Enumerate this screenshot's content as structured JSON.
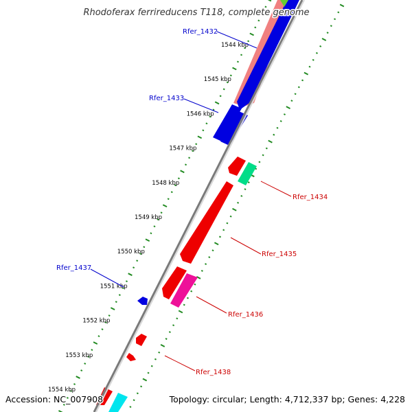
{
  "title": "Rhodoferax ferrireducens T118, complete genome",
  "footer": {
    "accession": "Accession: NC_007908",
    "summary": "Topology: circular; Length: 4,712,337 bp; Genes: 4,228"
  },
  "colors": {
    "backbone": "#8c8c8c",
    "forward_label": "#0000cc",
    "reverse_label": "#cc0000",
    "tick_major": "#228b22",
    "tick_minor": "#228b22"
  },
  "axis": {
    "unit": "kbp",
    "ticks": [
      {
        "label": "1544 kbp"
      },
      {
        "label": "1545 kbp"
      },
      {
        "label": "1546 kbp"
      },
      {
        "label": "1547 kbp"
      },
      {
        "label": "1548 kbp"
      },
      {
        "label": "1549 kbp"
      },
      {
        "label": "1550 kbp"
      },
      {
        "label": "1551 kbp"
      },
      {
        "label": "1552 kbp"
      },
      {
        "label": "1553 kbp"
      },
      {
        "label": "1554 kbp"
      }
    ]
  },
  "genes": [
    {
      "label": "Rfer_1432",
      "strand": "forward"
    },
    {
      "label": "Rfer_1433",
      "strand": "forward"
    },
    {
      "label": "Rfer_1434",
      "strand": "reverse"
    },
    {
      "label": "Rfer_1435",
      "strand": "reverse"
    },
    {
      "label": "Rfer_1436",
      "strand": "reverse"
    },
    {
      "label": "Rfer_1437",
      "strand": "forward"
    },
    {
      "label": "Rfer_1438",
      "strand": "reverse"
    }
  ]
}
